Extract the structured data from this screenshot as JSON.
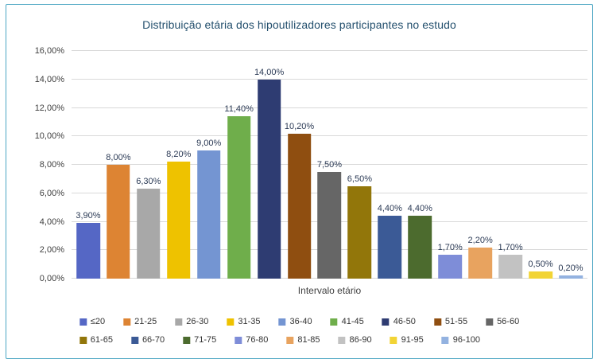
{
  "colors": {
    "frame_border": "#4BA6C3",
    "gridline": "#D9D9D9",
    "title_text": "#24506E",
    "tick_text": "#404040",
    "value_label_text": "#2B3A55",
    "axis_title_text": "#404040",
    "legend_text": "#333333"
  },
  "chart_data": {
    "type": "bar",
    "title": "Distribuição etária dos hipoutilizadores participantes no estudo",
    "xlabel": "Intervalo etário",
    "ylabel": "",
    "ylim": [
      0,
      16
    ],
    "grid": true,
    "legend_position": "bottom",
    "yticks": [
      "0,00%",
      "2,00%",
      "4,00%",
      "6,00%",
      "8,00%",
      "10,00%",
      "12,00%",
      "14,00%",
      "16,00%"
    ],
    "categories": [
      "≤20",
      "21-25",
      "26-30",
      "31-35",
      "36-40",
      "41-45",
      "46-50",
      "51-55",
      "56-60",
      "61-65",
      "66-70",
      "71-75",
      "76-80",
      "81-85",
      "86-90",
      "91-95",
      "96-100"
    ],
    "values": [
      3.9,
      8.0,
      6.3,
      8.2,
      9.0,
      11.4,
      14.0,
      10.2,
      7.5,
      6.5,
      4.4,
      4.4,
      1.7,
      2.2,
      1.7,
      0.5,
      0.2
    ],
    "value_labels": [
      "3,90%",
      "8,00%",
      "6,30%",
      "8,20%",
      "9,00%",
      "11,40%",
      "14,00%",
      "10,20%",
      "7,50%",
      "6,50%",
      "4,40%",
      "4,40%",
      "1,70%",
      "2,20%",
      "1,70%",
      "0,50%",
      "0,20%"
    ],
    "bar_colors": [
      "#5567C5",
      "#DD8433",
      "#A8A8A8",
      "#EEC200",
      "#7495D2",
      "#6FAE4B",
      "#2E3C72",
      "#8F4E10",
      "#666666",
      "#92760A",
      "#3B5A96",
      "#4C6B2E",
      "#7E8DD8",
      "#E8A35F",
      "#C2C2C2",
      "#F2D435",
      "#93B2E0"
    ],
    "legend_row_split": 9
  }
}
